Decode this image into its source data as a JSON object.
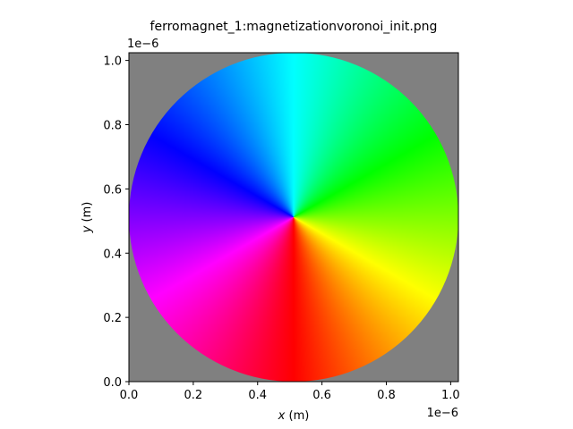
{
  "chart_data": {
    "type": "heatmap",
    "title": "ferromagnet_1:magnetizationvoronoi_init.png",
    "xlabel_var": "x",
    "xlabel_unit": " (m)",
    "ylabel_var": "y",
    "ylabel_unit": " (m)",
    "x_offset_label": "1e−6",
    "y_offset_label": "1e−6",
    "xlim": [
      0.0,
      1.024
    ],
    "ylim": [
      0.0,
      1.024
    ],
    "x_ticks": [
      0.0,
      0.2,
      0.4,
      0.6,
      0.8,
      1.0
    ],
    "x_tick_labels": [
      "0.0",
      "0.2",
      "0.4",
      "0.6",
      "0.8",
      "1.0"
    ],
    "y_ticks": [
      0.0,
      0.2,
      0.4,
      0.6,
      0.8,
      1.0
    ],
    "y_tick_labels": [
      "0.0",
      "0.2",
      "0.4",
      "0.6",
      "0.8",
      "1.0"
    ],
    "disk": {
      "center": [
        0.512,
        0.512
      ],
      "radius": 0.512
    },
    "colors": {
      "background": "#808080",
      "axes": "#000000"
    },
    "hue_angles_deg": {
      "red": 270,
      "yellow": 330,
      "green": 30,
      "cyan": 90,
      "blue": 150,
      "magenta": 210
    },
    "grid": false,
    "legend": "none"
  }
}
